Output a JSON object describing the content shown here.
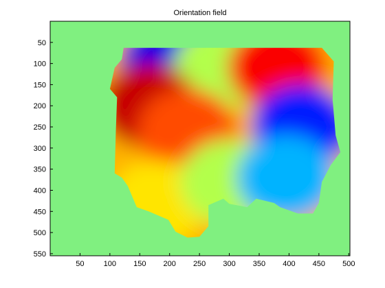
{
  "chart_data": {
    "type": "heatmap",
    "title": "Orientation field",
    "xlabel": "",
    "ylabel": "",
    "xlim": [
      0,
      502
    ],
    "ylim": [
      555,
      0
    ],
    "y_axis_direction": "reversed",
    "x_ticks": [
      50,
      100,
      150,
      200,
      250,
      300,
      350,
      400,
      450,
      500
    ],
    "y_ticks": [
      50,
      100,
      150,
      200,
      250,
      300,
      350,
      400,
      450,
      500,
      550
    ],
    "colormap": "jet",
    "background_color": "#80f080",
    "grid": false,
    "legend": "none",
    "mask_outline": [
      [
        123,
        63
      ],
      [
        455,
        63
      ],
      [
        475,
        95
      ],
      [
        473,
        185
      ],
      [
        478,
        270
      ],
      [
        486,
        310
      ],
      [
        470,
        340
      ],
      [
        455,
        380
      ],
      [
        450,
        430
      ],
      [
        440,
        455
      ],
      [
        415,
        455
      ],
      [
        385,
        440
      ],
      [
        375,
        430
      ],
      [
        345,
        420
      ],
      [
        330,
        440
      ],
      [
        300,
        432
      ],
      [
        290,
        420
      ],
      [
        265,
        435
      ],
      [
        265,
        485
      ],
      [
        250,
        510
      ],
      [
        230,
        512
      ],
      [
        210,
        498
      ],
      [
        198,
        470
      ],
      [
        165,
        450
      ],
      [
        145,
        440
      ],
      [
        130,
        390
      ],
      [
        120,
        370
      ],
      [
        108,
        360
      ],
      [
        110,
        260
      ],
      [
        112,
        180
      ],
      [
        100,
        160
      ],
      [
        108,
        110
      ],
      [
        120,
        90
      ]
    ],
    "regions": [
      {
        "orientation_value": 0.1,
        "centroid": [
          200,
          100
        ]
      },
      {
        "orientation_value": 0.55,
        "centroid": [
          290,
          110
        ]
      },
      {
        "orientation_value": 0.88,
        "centroid": [
          380,
          110
        ]
      },
      {
        "orientation_value": 0.93,
        "centroid": [
          165,
          200
        ]
      },
      {
        "orientation_value": 0.8,
        "centroid": [
          230,
          260
        ]
      },
      {
        "orientation_value": 0.65,
        "centroid": [
          180,
          430
        ]
      },
      {
        "orientation_value": 0.55,
        "centroid": [
          300,
          380
        ]
      },
      {
        "orientation_value": 0.15,
        "centroid": [
          420,
          250
        ]
      },
      {
        "orientation_value": 0.3,
        "centroid": [
          395,
          370
        ]
      }
    ]
  }
}
